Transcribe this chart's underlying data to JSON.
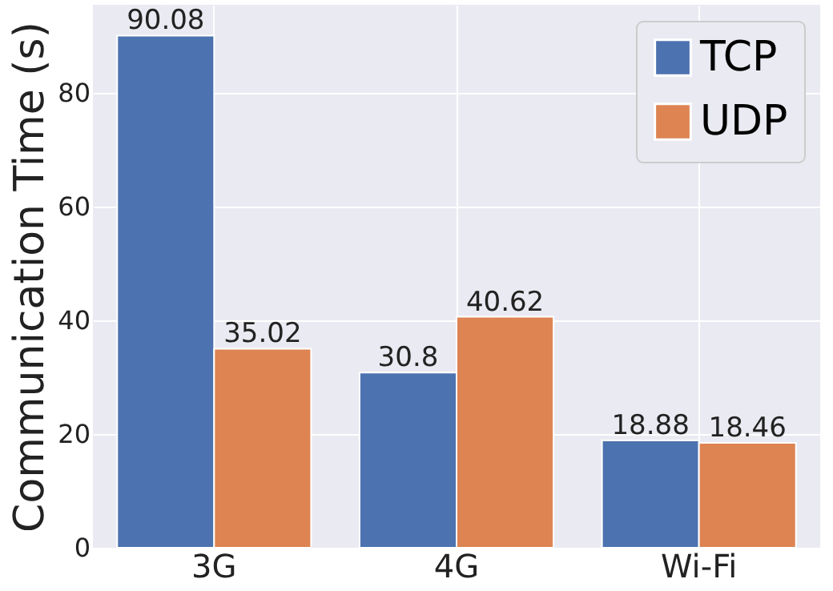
{
  "chart_data": {
    "type": "bar",
    "ylabel": "Communication Time (s)",
    "categories": [
      "3G",
      "4G",
      "Wi-Fi"
    ],
    "series": [
      {
        "name": "TCP",
        "color": "#4c72b0",
        "values": [
          90.08,
          30.8,
          18.88
        ]
      },
      {
        "name": "UDP",
        "color": "#dd8452",
        "values": [
          35.02,
          40.62,
          18.46
        ]
      }
    ],
    "ylim": [
      0,
      95.5
    ],
    "yticks": [
      0,
      20,
      40,
      60,
      80
    ],
    "grid": true,
    "legend": "top right",
    "data_labels": true
  }
}
